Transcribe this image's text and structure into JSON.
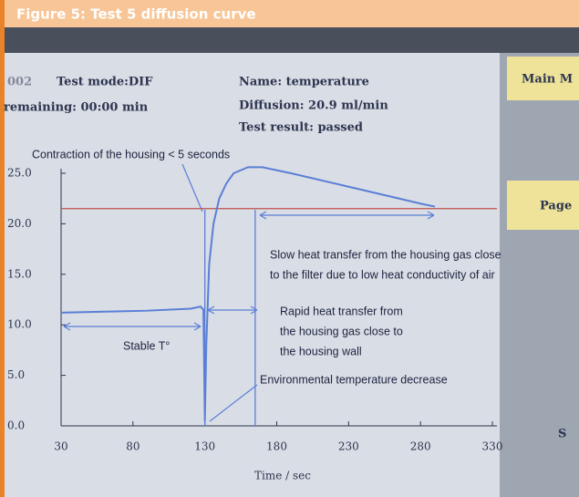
{
  "header": {
    "title": "Figure 5: Test 5 diffusion curve"
  },
  "screen": {
    "mode_prefix": "002",
    "test_mode": "Test mode:DIF",
    "remaining": "remaining: 00:00 min",
    "name": "Name: temperature",
    "diffusion": "Diffusion: 20.9 ml/min",
    "result": "Test result: passed",
    "buttons": [
      "Main M",
      "Page",
      "S"
    ]
  },
  "chart_data": {
    "type": "line",
    "xlabel": "Time / sec",
    "color": "#5b7fd6",
    "x": [
      30,
      60,
      90,
      120,
      127,
      129,
      130,
      131,
      133,
      136,
      140,
      145,
      150,
      160,
      170,
      190,
      220,
      250,
      280,
      290
    ],
    "values": [
      11.2,
      11.3,
      11.4,
      11.6,
      11.8,
      11.5,
      0.5,
      8,
      16,
      20,
      22.5,
      24,
      25,
      25.6,
      25.6,
      25,
      24,
      23,
      22,
      21.7
    ],
    "xlim": [
      30,
      330
    ],
    "ylim": [
      0,
      25
    ],
    "xticks": [
      30,
      80,
      130,
      180,
      230,
      280,
      330
    ],
    "yticks": [
      {
        "value": 0,
        "label": "0.0"
      },
      {
        "value": 5,
        "label": "5.0"
      },
      {
        "value": 10,
        "label": "10.0"
      },
      {
        "value": 15,
        "label": "15.0"
      },
      {
        "value": 20,
        "label": "20.0"
      },
      {
        "value": 25,
        "label": "25.0"
      }
    ],
    "grid": false,
    "hlines": [
      {
        "value": 21.5,
        "color": "#c0504d"
      }
    ],
    "vlines": [
      {
        "value": 130,
        "color": "#5b7fd6"
      },
      {
        "value": 165,
        "color": "#5b7fd6"
      }
    ],
    "annotations": {
      "contraction": "Contraction of the housing < 5 seconds",
      "slow": [
        "Slow heat transfer from the housing gas close",
        "to the filter due to low heat conductivity of air"
      ],
      "rapid": [
        "Rapid heat transfer from",
        "the housing gas close to",
        "the housing wall"
      ],
      "stable": "Stable T°",
      "environment": "Environmental temperature decrease"
    }
  }
}
